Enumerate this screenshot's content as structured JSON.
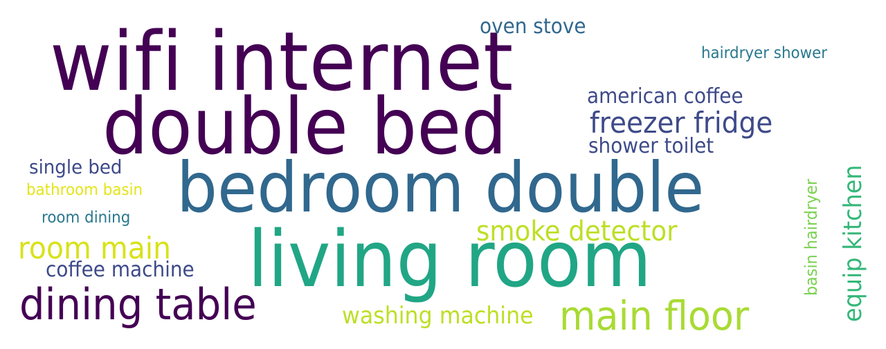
{
  "words": [
    {
      "text": "wifi internet",
      "color": "#440154"
    },
    {
      "text": "double bed",
      "color": "#440154"
    },
    {
      "text": "bedroom double",
      "color": "#31688e"
    },
    {
      "text": "living room",
      "color": "#21a685"
    },
    {
      "text": "dining table",
      "color": "#440154"
    },
    {
      "text": "main floor",
      "color": "#a8db34"
    },
    {
      "text": "room main",
      "color": "#d8e219"
    },
    {
      "text": "smoke detector",
      "color": "#bddf26"
    },
    {
      "text": "freezer fridge",
      "color": "#3e4a89"
    },
    {
      "text": "american coffee",
      "color": "#3e4a89"
    },
    {
      "text": "shower toilet",
      "color": "#3e4a89"
    },
    {
      "text": "oven stove",
      "color": "#31688e"
    },
    {
      "text": "hairdryer shower",
      "color": "#2a788e"
    },
    {
      "text": "single bed",
      "color": "#3e4a89"
    },
    {
      "text": "bathroom basin",
      "color": "#e5e419"
    },
    {
      "text": "room dining",
      "color": "#2a788e"
    },
    {
      "text": "coffee machine",
      "color": "#3e4a89"
    },
    {
      "text": "washing machine",
      "color": "#bddf26"
    },
    {
      "text": "equip kitchen",
      "color": "#35b779"
    },
    {
      "text": "basin hairdryer",
      "color": "#7ad151"
    }
  ]
}
